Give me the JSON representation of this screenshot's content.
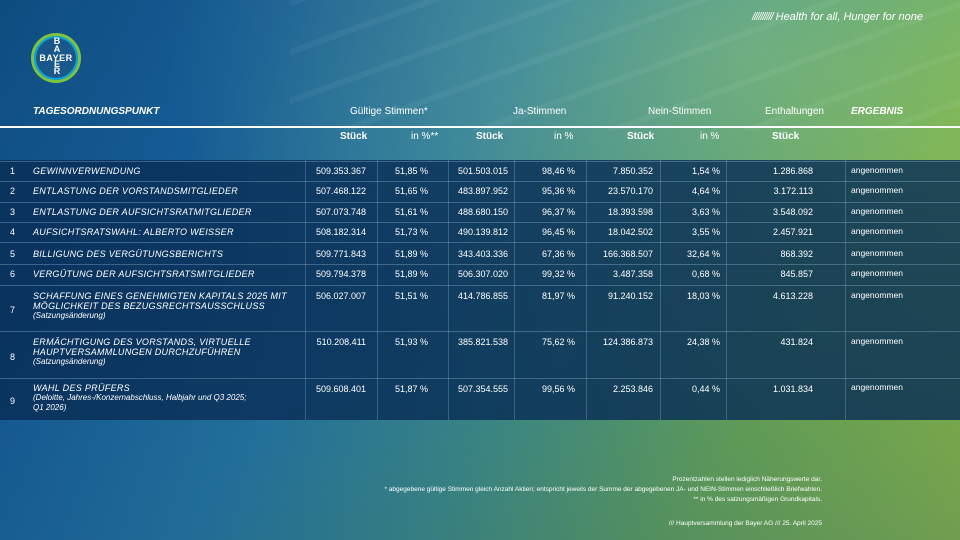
{
  "brand": {
    "logo_horizontal": "BAYER",
    "logo_vertical": "BAYER",
    "tagline_slashes": "//////////",
    "tagline": "Health for all, Hunger for none"
  },
  "header": {
    "item": "TAGESORDNUNGSPUNKT",
    "valid_votes": "Gültige Stimmen*",
    "yes_votes": "Ja-Stimmen",
    "no_votes": "Nein-Stimmen",
    "abstentions": "Enthaltungen",
    "result": "ERGEBNIS",
    "sub_pieces": "Stück",
    "sub_percent_valid": "in %**",
    "sub_percent": "in %"
  },
  "rows": [
    {
      "no": "1",
      "title": "GEWINNVERWENDUNG",
      "sub": "",
      "valid": "509.353.367",
      "valid_pct": "51,85 %",
      "yes": "501.503.015",
      "yes_pct": "98,46 %",
      "no_votes": "7.850.352",
      "no_pct": "1,54 %",
      "abst": "1.286.868",
      "result": "angenommen"
    },
    {
      "no": "2",
      "title": "ENTLASTUNG DER VORSTANDSMITGLIEDER",
      "sub": "",
      "valid": "507.468.122",
      "valid_pct": "51,65 %",
      "yes": "483.897.952",
      "yes_pct": "95,36 %",
      "no_votes": "23.570.170",
      "no_pct": "4,64 %",
      "abst": "3.172.113",
      "result": "angenommen"
    },
    {
      "no": "3",
      "title": "ENTLASTUNG DER AUFSICHTSRATMITGLIEDER",
      "sub": "",
      "valid": "507.073.748",
      "valid_pct": "51,61 %",
      "yes": "488.680.150",
      "yes_pct": "96,37 %",
      "no_votes": "18.393.598",
      "no_pct": "3,63 %",
      "abst": "3.548.092",
      "result": "angenommen"
    },
    {
      "no": "4",
      "title": "AUFSICHTSRATSWAHL: ALBERTO WEISSER",
      "sub": "",
      "valid": "508.182.314",
      "valid_pct": "51,73 %",
      "yes": "490.139.812",
      "yes_pct": "96,45 %",
      "no_votes": "18.042.502",
      "no_pct": "3,55 %",
      "abst": "2.457.921",
      "result": "angenommen"
    },
    {
      "no": "5",
      "title": "BILLIGUNG DES VERGÜTUNGSBERICHTS",
      "sub": "",
      "valid": "509.771.843",
      "valid_pct": "51,89 %",
      "yes": "343.403.336",
      "yes_pct": "67,36 %",
      "no_votes": "166.368.507",
      "no_pct": "32,64 %",
      "abst": "868.392",
      "result": "angenommen"
    },
    {
      "no": "6",
      "title": "VERGÜTUNG DER AUFSICHTSRATSMITGLIEDER",
      "sub": "",
      "valid": "509.794.378",
      "valid_pct": "51,89 %",
      "yes": "506.307.020",
      "yes_pct": "99,32 %",
      "no_votes": "3.487.358",
      "no_pct": "0,68 %",
      "abst": "845.857",
      "result": "angenommen"
    },
    {
      "no": "7",
      "title_lines": [
        "SCHAFFUNG EINES GENEHMIGTEN KAPITALS 2025 MIT",
        "MÖGLICHKEIT DES BEZUGSRECHTSAUSSCHLUSS"
      ],
      "sub": "(Satzungsänderung)",
      "valid": "506.027.007",
      "valid_pct": "51,51 %",
      "yes": "414.786.855",
      "yes_pct": "81,97 %",
      "no_votes": "91.240.152",
      "no_pct": "18,03 %",
      "abst": "4.613.228",
      "result": "angenommen"
    },
    {
      "no": "8",
      "title_lines": [
        "ERMÄCHTIGUNG DES VORSTANDS, VIRTUELLE",
        "HAUPTVERSAMMLUNGEN DURCHZUFÜHREN"
      ],
      "sub": "(Satzungsänderung)",
      "valid": "510.208.411",
      "valid_pct": "51,93 %",
      "yes": "385.821.538",
      "yes_pct": "75,62 %",
      "no_votes": "124.386.873",
      "no_pct": "24,38 %",
      "abst": "431.824",
      "result": "angenommen"
    },
    {
      "no": "9",
      "title_lines": [
        "WAHL DES PRÜFERS"
      ],
      "sub_lines": [
        "(Deloitte, Jahres-/Konzernabschluss, Halbjahr und Q3 2025;",
        "Q1 2026)"
      ],
      "valid": "509.608.401",
      "valid_pct": "51,87 %",
      "yes": "507.354.555",
      "yes_pct": "99,56 %",
      "no_votes": "2.253.846",
      "no_pct": "0,44 %",
      "abst": "1.031.834",
      "result": "angenommen"
    }
  ],
  "footnotes": {
    "line1": "Prozentzahlen stellen lediglich Näherungswerte dar.",
    "line2": "* abgegebene gültige Stimmen gleich Anzahl Aktien; entspricht jeweils der Summe der abgegebenen JA- und NEIN-Stimmen einschließlich Briefwahlen.",
    "line3": "** in % des satzungsmäßigen Grundkapitals.",
    "event": "/// Hauptversammlung der Bayer AG /// 25. April 2025"
  }
}
